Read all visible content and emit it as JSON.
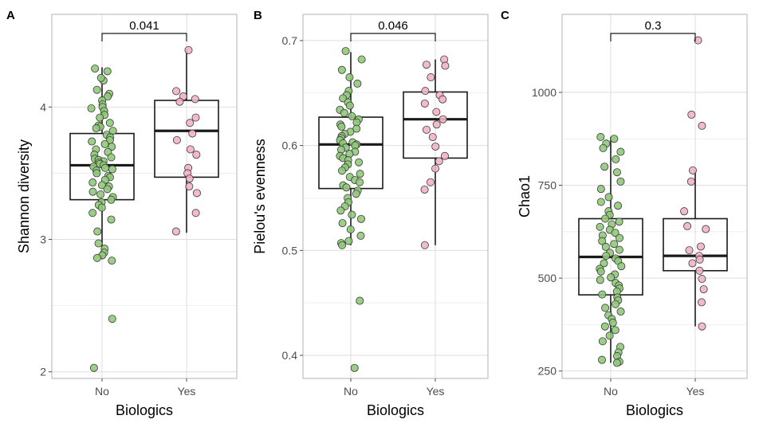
{
  "chart_data": [
    {
      "type": "boxplot",
      "panel": "A",
      "xlabel": "Biologics",
      "ylabel": "Shannon diversity",
      "categories": [
        "No",
        "Yes"
      ],
      "ylim": [
        1.95,
        4.7
      ],
      "yticks": [
        2,
        3,
        4
      ],
      "ytick_labels": [
        "2",
        "3",
        "4"
      ],
      "boxes": [
        {
          "group": "No",
          "whisker_low": 2.85,
          "q1": 3.3,
          "median": 3.56,
          "q3": 3.8,
          "whisker_high": 4.3
        },
        {
          "group": "Yes",
          "whisker_low": 3.05,
          "q1": 3.47,
          "median": 3.82,
          "q3": 4.05,
          "whisker_high": 4.43
        }
      ],
      "comparison": {
        "groups": [
          "No",
          "Yes"
        ],
        "label": "0.041"
      },
      "points": [
        {
          "group": "No",
          "values": [
            4.29,
            4.27,
            4.2,
            4.22,
            4.13,
            4.1,
            4.08,
            4.05,
            4.02,
            4.0,
            3.99,
            3.97,
            3.94,
            3.92,
            3.88,
            3.86,
            3.85,
            3.84,
            3.82,
            3.79,
            3.77,
            3.75,
            3.74,
            3.72,
            3.7,
            3.68,
            3.66,
            3.64,
            3.62,
            3.61,
            3.6,
            3.59,
            3.58,
            3.57,
            3.56,
            3.55,
            3.54,
            3.53,
            3.52,
            3.5,
            3.48,
            3.47,
            3.45,
            3.43,
            3.41,
            3.4,
            3.38,
            3.36,
            3.34,
            3.32,
            3.3,
            3.28,
            3.26,
            3.24,
            3.2,
            3.15,
            3.06,
            2.97,
            2.93,
            2.9,
            2.88,
            2.86,
            2.84,
            2.4,
            2.03
          ]
        },
        {
          "group": "Yes",
          "values": [
            4.43,
            4.12,
            4.08,
            4.06,
            4.04,
            3.92,
            3.88,
            3.8,
            3.75,
            3.68,
            3.64,
            3.54,
            3.5,
            3.46,
            3.4,
            3.35,
            3.2,
            3.06
          ]
        }
      ]
    },
    {
      "type": "boxplot",
      "panel": "B",
      "xlabel": "Biologics",
      "ylabel": "Pielou's evenness",
      "categories": [
        "No",
        "Yes"
      ],
      "ylim": [
        0.378,
        0.725
      ],
      "yticks": [
        0.4,
        0.5,
        0.6,
        0.7
      ],
      "ytick_labels": [
        "0.4",
        "0.5",
        "0.6",
        "0.7"
      ],
      "boxes": [
        {
          "group": "No",
          "whisker_low": 0.505,
          "q1": 0.559,
          "median": 0.601,
          "q3": 0.627,
          "whisker_high": 0.689
        },
        {
          "group": "Yes",
          "whisker_low": 0.505,
          "q1": 0.588,
          "median": 0.625,
          "q3": 0.651,
          "whisker_high": 0.682
        }
      ],
      "comparison": {
        "groups": [
          "No",
          "Yes"
        ],
        "label": "0.046"
      },
      "points": [
        {
          "group": "No",
          "values": [
            0.69,
            0.682,
            0.672,
            0.665,
            0.659,
            0.652,
            0.648,
            0.645,
            0.641,
            0.638,
            0.634,
            0.631,
            0.628,
            0.625,
            0.622,
            0.62,
            0.618,
            0.616,
            0.613,
            0.611,
            0.609,
            0.607,
            0.605,
            0.603,
            0.602,
            0.601,
            0.6,
            0.598,
            0.596,
            0.594,
            0.592,
            0.59,
            0.588,
            0.586,
            0.584,
            0.582,
            0.579,
            0.576,
            0.573,
            0.57,
            0.567,
            0.565,
            0.562,
            0.56,
            0.557,
            0.554,
            0.55,
            0.546,
            0.542,
            0.538,
            0.534,
            0.53,
            0.526,
            0.52,
            0.514,
            0.509,
            0.507,
            0.505,
            0.452,
            0.388
          ]
        },
        {
          "group": "Yes",
          "values": [
            0.682,
            0.677,
            0.676,
            0.665,
            0.652,
            0.648,
            0.644,
            0.64,
            0.632,
            0.625,
            0.62,
            0.615,
            0.608,
            0.599,
            0.59,
            0.585,
            0.578,
            0.565,
            0.558,
            0.505
          ]
        }
      ]
    },
    {
      "type": "boxplot",
      "panel": "C",
      "xlabel": "Biologics",
      "ylabel": "Chao1",
      "categories": [
        "No",
        "Yes"
      ],
      "ylim": [
        230,
        1210
      ],
      "yticks": [
        250,
        500,
        750,
        1000
      ],
      "ytick_labels": [
        "250",
        "500",
        "750",
        "1000"
      ],
      "boxes": [
        {
          "group": "No",
          "whisker_low": 272,
          "q1": 455,
          "median": 557,
          "q3": 660,
          "whisker_high": 880
        },
        {
          "group": "Yes",
          "whisker_low": 370,
          "q1": 520,
          "median": 560,
          "q3": 660,
          "whisker_high": 790
        }
      ],
      "comparison": {
        "groups": [
          "No",
          "Yes"
        ],
        "label": "0.3"
      },
      "points": [
        {
          "group": "No",
          "values": [
            880,
            875,
            862,
            850,
            840,
            820,
            800,
            785,
            760,
            740,
            718,
            705,
            695,
            680,
            670,
            660,
            652,
            645,
            638,
            630,
            622,
            615,
            608,
            600,
            592,
            584,
            576,
            568,
            560,
            553,
            546,
            540,
            532,
            525,
            518,
            510,
            502,
            495,
            487,
            480,
            472,
            464,
            456,
            448,
            440,
            430,
            420,
            410,
            400,
            390,
            380,
            370,
            360,
            345,
            330,
            315,
            300,
            290,
            280,
            275,
            272
          ]
        },
        {
          "group": "Yes",
          "values": [
            1140,
            940,
            910,
            790,
            760,
            680,
            640,
            632,
            585,
            575,
            560,
            550,
            540,
            520,
            498,
            470,
            435,
            370
          ]
        }
      ]
    }
  ]
}
